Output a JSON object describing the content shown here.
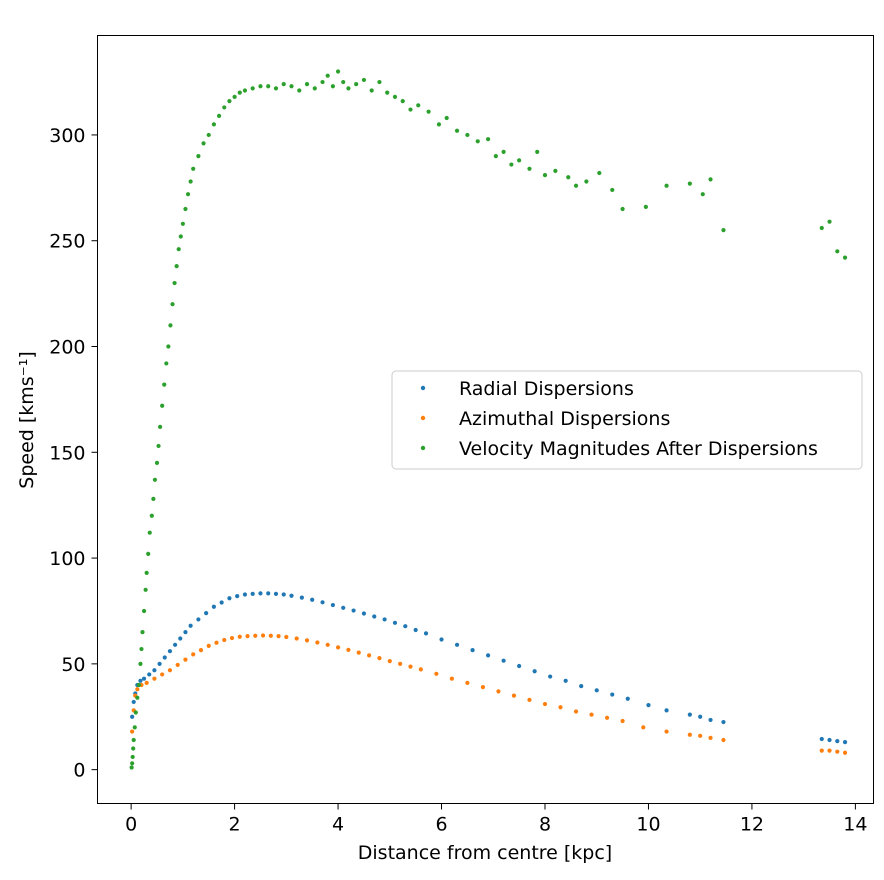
{
  "chart_data": {
    "type": "scatter",
    "xlabel": "Distance from centre [kpc]",
    "ylabel": "Speed [kms⁻¹]",
    "xlim": [
      -0.65,
      14.35
    ],
    "ylim": [
      -16,
      347
    ],
    "xticks": [
      0,
      2,
      4,
      6,
      8,
      10,
      12,
      14
    ],
    "yticks": [
      0,
      50,
      100,
      150,
      200,
      250,
      300
    ],
    "legend_position": "center-right",
    "grid": false,
    "series": [
      {
        "name": "Radial Dispersions",
        "color": "#1f77b4",
        "points": [
          [
            0.02,
            25
          ],
          [
            0.05,
            32
          ],
          [
            0.08,
            36
          ],
          [
            0.12,
            40
          ],
          [
            0.18,
            42
          ],
          [
            0.25,
            43
          ],
          [
            0.35,
            45
          ],
          [
            0.45,
            47
          ],
          [
            0.55,
            50
          ],
          [
            0.65,
            53
          ],
          [
            0.75,
            56
          ],
          [
            0.85,
            59
          ],
          [
            0.95,
            62
          ],
          [
            1.05,
            65
          ],
          [
            1.15,
            68
          ],
          [
            1.3,
            71
          ],
          [
            1.45,
            74
          ],
          [
            1.6,
            77
          ],
          [
            1.75,
            79
          ],
          [
            1.9,
            81
          ],
          [
            2.05,
            82
          ],
          [
            2.2,
            82.8
          ],
          [
            2.35,
            83.1
          ],
          [
            2.5,
            83.3
          ],
          [
            2.65,
            83.3
          ],
          [
            2.8,
            83.1
          ],
          [
            2.95,
            82.8
          ],
          [
            3.1,
            82.2
          ],
          [
            3.3,
            81.3
          ],
          [
            3.5,
            80.3
          ],
          [
            3.7,
            79.1
          ],
          [
            3.9,
            77.8
          ],
          [
            4.1,
            76.5
          ],
          [
            4.3,
            75.2
          ],
          [
            4.5,
            73.8
          ],
          [
            4.7,
            72.4
          ],
          [
            4.9,
            71.0
          ],
          [
            5.1,
            69.4
          ],
          [
            5.3,
            67.8
          ],
          [
            5.5,
            66.0
          ],
          [
            5.7,
            64.4
          ],
          [
            6.0,
            61.5
          ],
          [
            6.3,
            59.0
          ],
          [
            6.6,
            56.5
          ],
          [
            6.9,
            54.0
          ],
          [
            7.2,
            51.5
          ],
          [
            7.5,
            49.0
          ],
          [
            7.8,
            46.5
          ],
          [
            8.1,
            44.0
          ],
          [
            8.4,
            42.0
          ],
          [
            8.7,
            39.5
          ],
          [
            9.0,
            37.5
          ],
          [
            9.3,
            35.5
          ],
          [
            9.6,
            33.5
          ],
          [
            10.0,
            30.5
          ],
          [
            10.35,
            28.0
          ],
          [
            10.8,
            26.0
          ],
          [
            11.0,
            25.0
          ],
          [
            11.2,
            23.5
          ],
          [
            11.45,
            22.5
          ],
          [
            13.35,
            14.5
          ],
          [
            13.5,
            14.0
          ],
          [
            13.65,
            13.5
          ],
          [
            13.8,
            13.0
          ]
        ]
      },
      {
        "name": "Azimuthal Dispersions",
        "color": "#ff7f0e",
        "points": [
          [
            0.02,
            18
          ],
          [
            0.05,
            28
          ],
          [
            0.08,
            35
          ],
          [
            0.12,
            38
          ],
          [
            0.2,
            40
          ],
          [
            0.3,
            41
          ],
          [
            0.45,
            43
          ],
          [
            0.6,
            45
          ],
          [
            0.75,
            47
          ],
          [
            0.9,
            49.5
          ],
          [
            1.05,
            52
          ],
          [
            1.2,
            54.5
          ],
          [
            1.35,
            56.5
          ],
          [
            1.5,
            58.5
          ],
          [
            1.65,
            60
          ],
          [
            1.8,
            61.3
          ],
          [
            1.95,
            62.2
          ],
          [
            2.1,
            62.8
          ],
          [
            2.25,
            63.1
          ],
          [
            2.4,
            63.3
          ],
          [
            2.55,
            63.4
          ],
          [
            2.7,
            63.3
          ],
          [
            2.85,
            63.1
          ],
          [
            3.0,
            62.7
          ],
          [
            3.2,
            62.0
          ],
          [
            3.4,
            61.1
          ],
          [
            3.6,
            60.1
          ],
          [
            3.8,
            59.0
          ],
          [
            4.0,
            57.8
          ],
          [
            4.2,
            56.6
          ],
          [
            4.4,
            55.3
          ],
          [
            4.6,
            54.0
          ],
          [
            4.8,
            52.7
          ],
          [
            5.0,
            51.3
          ],
          [
            5.2,
            50.0
          ],
          [
            5.4,
            48.7
          ],
          [
            5.6,
            47.4
          ],
          [
            5.9,
            45.3
          ],
          [
            6.2,
            43.0
          ],
          [
            6.5,
            41.0
          ],
          [
            6.8,
            39.0
          ],
          [
            7.1,
            37.0
          ],
          [
            7.4,
            35.0
          ],
          [
            7.7,
            33.0
          ],
          [
            8.0,
            31.0
          ],
          [
            8.3,
            29.5
          ],
          [
            8.6,
            27.5
          ],
          [
            8.9,
            26.0
          ],
          [
            9.2,
            24.5
          ],
          [
            9.5,
            23.0
          ],
          [
            9.9,
            20.0
          ],
          [
            10.35,
            18.0
          ],
          [
            10.8,
            16.5
          ],
          [
            11.0,
            16.0
          ],
          [
            11.2,
            15.0
          ],
          [
            11.45,
            14.0
          ],
          [
            13.35,
            9.0
          ],
          [
            13.5,
            9.0
          ],
          [
            13.65,
            8.5
          ],
          [
            13.8,
            8.0
          ]
        ]
      },
      {
        "name": "Velocity Magnitudes After Dispersions",
        "color": "#2ca02c",
        "points": [
          [
            0.01,
            1
          ],
          [
            0.02,
            3
          ],
          [
            0.03,
            6
          ],
          [
            0.04,
            10
          ],
          [
            0.05,
            14
          ],
          [
            0.07,
            20
          ],
          [
            0.09,
            27
          ],
          [
            0.12,
            34
          ],
          [
            0.15,
            40
          ],
          [
            0.18,
            50
          ],
          [
            0.2,
            57
          ],
          [
            0.22,
            65
          ],
          [
            0.25,
            75
          ],
          [
            0.28,
            85
          ],
          [
            0.3,
            93
          ],
          [
            0.33,
            102
          ],
          [
            0.36,
            112
          ],
          [
            0.4,
            120
          ],
          [
            0.43,
            128
          ],
          [
            0.46,
            137
          ],
          [
            0.5,
            145
          ],
          [
            0.53,
            153
          ],
          [
            0.56,
            162
          ],
          [
            0.6,
            172
          ],
          [
            0.64,
            182
          ],
          [
            0.68,
            192
          ],
          [
            0.72,
            200
          ],
          [
            0.76,
            210
          ],
          [
            0.8,
            220
          ],
          [
            0.84,
            230
          ],
          [
            0.88,
            238
          ],
          [
            0.92,
            246
          ],
          [
            0.96,
            252
          ],
          [
            1.0,
            258
          ],
          [
            1.05,
            265
          ],
          [
            1.1,
            272
          ],
          [
            1.15,
            278
          ],
          [
            1.2,
            284
          ],
          [
            1.3,
            290
          ],
          [
            1.4,
            296
          ],
          [
            1.5,
            300
          ],
          [
            1.6,
            305
          ],
          [
            1.7,
            309
          ],
          [
            1.8,
            313
          ],
          [
            1.9,
            316
          ],
          [
            2.0,
            318
          ],
          [
            2.1,
            320
          ],
          [
            2.2,
            321
          ],
          [
            2.35,
            322
          ],
          [
            2.5,
            323
          ],
          [
            2.65,
            323
          ],
          [
            2.8,
            322
          ],
          [
            2.95,
            324
          ],
          [
            3.1,
            323
          ],
          [
            3.25,
            321
          ],
          [
            3.4,
            324
          ],
          [
            3.55,
            322
          ],
          [
            3.7,
            325
          ],
          [
            3.8,
            328
          ],
          [
            3.9,
            323
          ],
          [
            4.0,
            330
          ],
          [
            4.1,
            325
          ],
          [
            4.2,
            322
          ],
          [
            4.35,
            324
          ],
          [
            4.5,
            326
          ],
          [
            4.65,
            321
          ],
          [
            4.8,
            325
          ],
          [
            4.95,
            320
          ],
          [
            5.1,
            318
          ],
          [
            5.25,
            316
          ],
          [
            5.4,
            312
          ],
          [
            5.55,
            314
          ],
          [
            5.75,
            311
          ],
          [
            5.95,
            305
          ],
          [
            6.1,
            308
          ],
          [
            6.3,
            302
          ],
          [
            6.5,
            300
          ],
          [
            6.7,
            297
          ],
          [
            6.9,
            298
          ],
          [
            7.05,
            290
          ],
          [
            7.2,
            292
          ],
          [
            7.35,
            286
          ],
          [
            7.5,
            288
          ],
          [
            7.7,
            284
          ],
          [
            7.85,
            292
          ],
          [
            8.0,
            281
          ],
          [
            8.2,
            283
          ],
          [
            8.45,
            280
          ],
          [
            8.6,
            276
          ],
          [
            8.8,
            278
          ],
          [
            9.05,
            282
          ],
          [
            9.3,
            274
          ],
          [
            9.5,
            265
          ],
          [
            9.95,
            266
          ],
          [
            10.35,
            276
          ],
          [
            10.8,
            277
          ],
          [
            11.05,
            272
          ],
          [
            11.2,
            279
          ],
          [
            11.45,
            255
          ],
          [
            13.35,
            256
          ],
          [
            13.5,
            259
          ],
          [
            13.65,
            245
          ],
          [
            13.8,
            242
          ]
        ]
      }
    ]
  }
}
